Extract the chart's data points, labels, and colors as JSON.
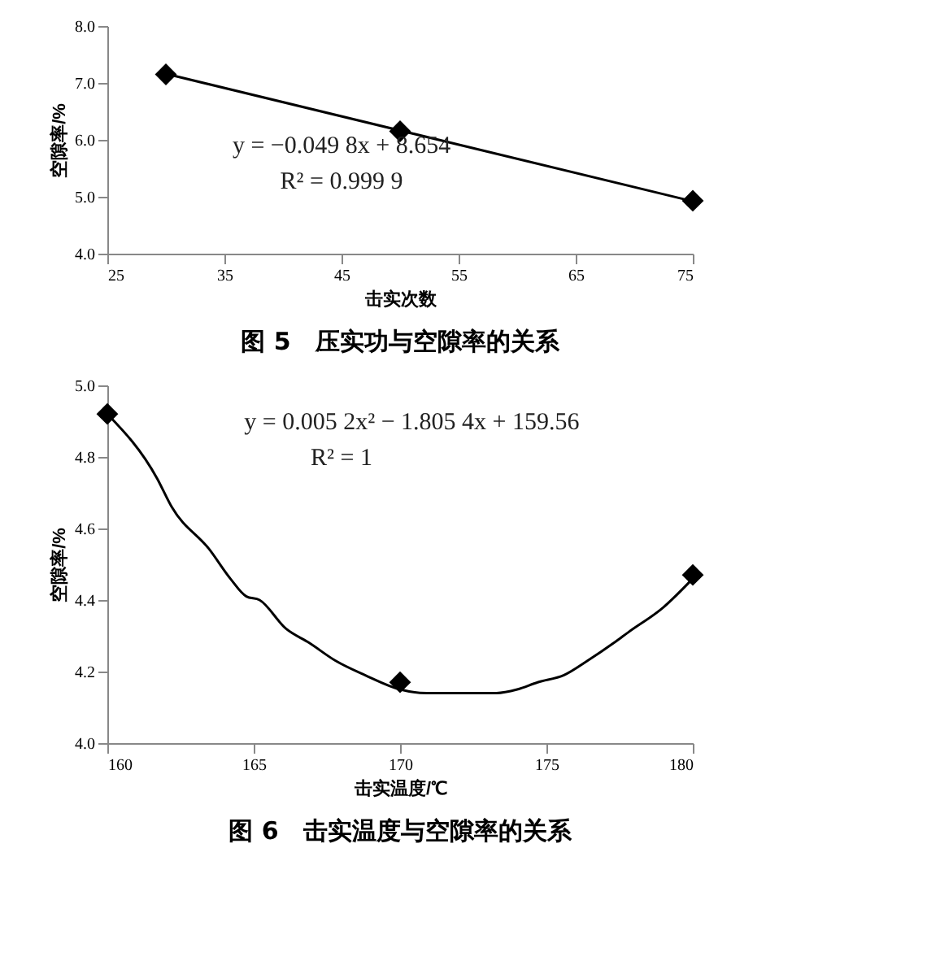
{
  "chart_data": [
    {
      "type": "scatter",
      "title": "图 5　压实功与空隙率的关系",
      "xlabel": "击实次数",
      "ylabel": "空隙率/%",
      "xlim": [
        25,
        75
      ],
      "xticks": [
        25,
        35,
        45,
        55,
        65,
        75
      ],
      "ylim": [
        4.0,
        8.0
      ],
      "yticks": [
        {
          "value": 4,
          "label": "4.0"
        },
        {
          "value": 5,
          "label": "5.0"
        },
        {
          "value": 6,
          "label": "6.0"
        },
        {
          "value": 7,
          "label": "7.0"
        },
        {
          "value": 8,
          "label": "8.0"
        }
      ],
      "grid": false,
      "legend": false,
      "marker": "diamond",
      "annotations": [
        "y = −0.049 8x + 8.654",
        "R² = 0.999 9"
      ],
      "series": [
        {
          "type": "line",
          "marker": "none",
          "line_style": "solid",
          "color": "#000000",
          "x": [
            30,
            75
          ],
          "values": [
            7.16,
            4.92
          ]
        },
        {
          "color": "#000000",
          "x": [
            30,
            50,
            75
          ],
          "values": [
            7.15,
            6.15,
            4.93
          ]
        }
      ]
    },
    {
      "type": "scatter",
      "title": "图 6　击实温度与空隙率的关系",
      "xlabel": "击实温度/℃",
      "ylabel": "空隙率/%",
      "xlim": [
        160,
        180
      ],
      "xticks": [
        160,
        165,
        170,
        175,
        180
      ],
      "ylim": [
        4.0,
        5.0
      ],
      "yticks": [
        {
          "value": 4,
          "label": "4.0"
        },
        4.2,
        4.4,
        4.6,
        4.8,
        {
          "value": 5,
          "label": "5.0"
        }
      ],
      "grid": false,
      "legend": false,
      "marker": "diamond",
      "annotations": [
        "y = 0.005 2x² − 1.805 4x + 159.56",
        "R² = 1"
      ],
      "series": [
        {
          "type": "line",
          "marker": "none",
          "line_style": "solid",
          "color": "#000000",
          "x": [
            160,
            161.7,
            162.2,
            163.5,
            164.2,
            164.75,
            165.2,
            166.1,
            166.9,
            167.8,
            168.8,
            170,
            170.9,
            173.3,
            174,
            174.7,
            175.6,
            176.4,
            177.3,
            177.8,
            179,
            180
          ],
          "values": [
            4.92,
            4.74,
            4.66,
            4.54,
            4.46,
            4.41,
            4.4,
            4.32,
            4.28,
            4.23,
            4.19,
            4.15,
            4.14,
            4.14,
            4.15,
            4.17,
            4.19,
            4.23,
            4.28,
            4.31,
            4.38,
            4.46
          ]
        },
        {
          "color": "#000000",
          "x": [
            160,
            170,
            180
          ],
          "values": [
            4.92,
            4.17,
            4.47
          ]
        }
      ]
    }
  ]
}
